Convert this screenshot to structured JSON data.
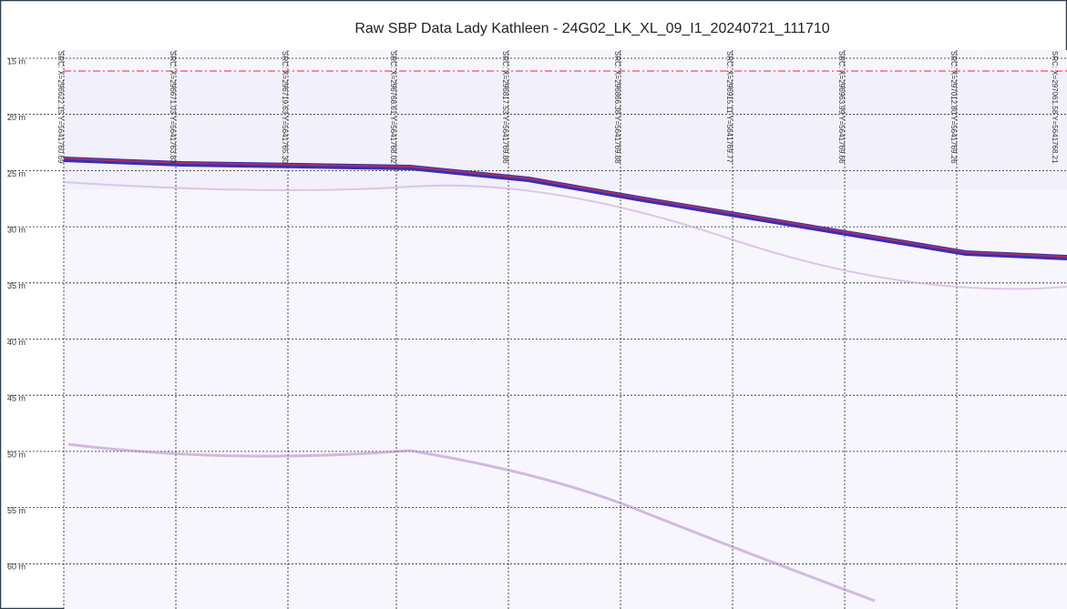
{
  "header": {
    "title": "Raw SBP Data Lady Kathleen - 24G02_LK_XL_09_I1_20240721_111710"
  },
  "depth_labels": [
    "15 m",
    "20 m",
    "25 m",
    "30 m",
    "35 m",
    "40 m",
    "45 m",
    "50 m",
    "55 m",
    "60 m"
  ],
  "fix_labels": [
    "SRC: X=296622.15 Y=5641760.69",
    "SRC: X=296671.03 Y=5641763.83",
    "SRC: X=296719.63 Y=5641765.30",
    "SRC: X=296768.61 Y=5641768.02",
    "SRC: X=296817.53 Y=5641769.86",
    "SRC: X=296866.38 Y=5641769.88",
    "SRC: X=296915.11 Y=5641769.77",
    "SRC: X=296963.99 Y=5641769.66",
    "SRC: X=297012.80 Y=5641769.26",
    "SRC: X=297061.58 Y=5641768.21"
  ]
}
